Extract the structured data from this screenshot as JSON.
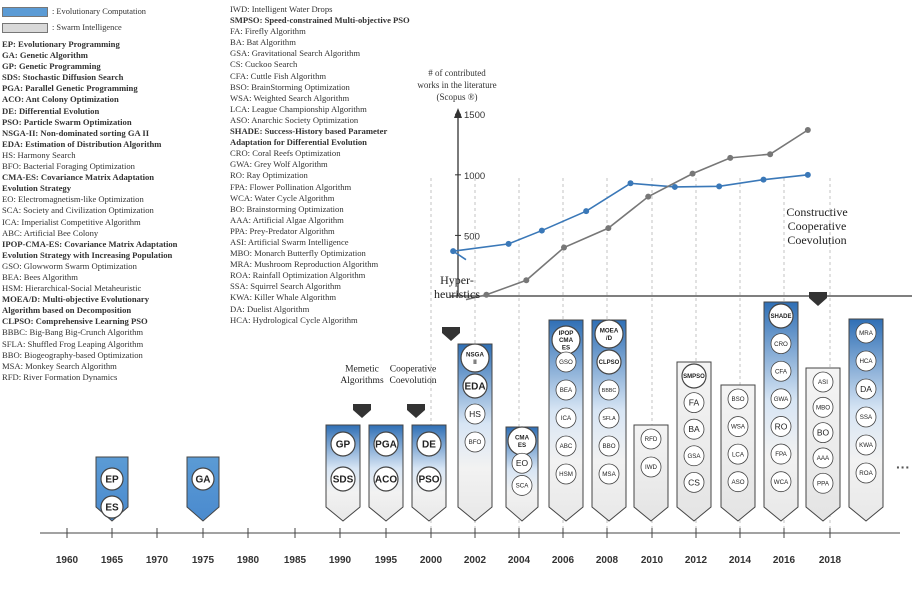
{
  "legend": {
    "ec_label": ": Evolutionary Computation",
    "si_label": ": Swarm Intelligence",
    "ec_color": "#5b9bd5",
    "si_color": "#d9d9d9",
    "abbrev_col1": [
      {
        "text": "EP: Evolutionary Programming",
        "bold": true
      },
      {
        "text": "GA: Genetic Algorithm",
        "bold": true
      },
      {
        "text": "GP: Genetic Programming",
        "bold": true
      },
      {
        "text": "SDS: Stochastic Diffusion Search",
        "bold": true
      },
      {
        "text": "PGA: Parallel Genetic Programming",
        "bold": true
      },
      {
        "text": "ACO: Ant Colony Optimization",
        "bold": true
      },
      {
        "text": "DE: Differential Evolution",
        "bold": true
      },
      {
        "text": "PSO: Particle Swarm Optimization",
        "bold": true
      },
      {
        "text": "NSGA-II: Non-dominated sorting GA II",
        "bold": true
      },
      {
        "text": "EDA: Estimation of Distribution Algorithm",
        "bold": true
      },
      {
        "text": "HS: Harmony Search",
        "bold": false
      },
      {
        "text": "BFO: Bacterial Foraging Optimization",
        "bold": false
      },
      {
        "text": "CMA-ES: Covariance Matrix Adaptation",
        "bold": true
      },
      {
        "text": "Evolution Strategy",
        "bold": true
      },
      {
        "text": "EO: Electromagnetism-like Optimization",
        "bold": false
      },
      {
        "text": "SCA: Society and Civilization Optimization",
        "bold": false
      },
      {
        "text": "ICA: Imperialist Competitive Algorithm",
        "bold": false
      },
      {
        "text": "ABC: Artificial Bee Colony",
        "bold": false
      },
      {
        "text": "IPOP-CMA-ES: Covariance Matrix Adaptation",
        "bold": true
      },
      {
        "text": "Evolution Strategy with Increasing Population",
        "bold": true
      },
      {
        "text": "GSO: Glowworm Swarm Optimization",
        "bold": false
      },
      {
        "text": "BEA: Bees Algorithm",
        "bold": false
      },
      {
        "text": "HSM: Hierarchical-Social Metaheuristic",
        "bold": false
      },
      {
        "text": "MOEA/D: Multi-objective Evolutionary",
        "bold": true
      },
      {
        "text": "Algorithm based on Decomposition",
        "bold": true
      },
      {
        "text": "CLPSO: Comprehensive Learning PSO",
        "bold": true
      },
      {
        "text": "BBBC: Big-Bang Big-Crunch Algorithm",
        "bold": false
      },
      {
        "text": "SFLA: Shuffled Frog Leaping Algorithm",
        "bold": false
      },
      {
        "text": "BBO: Biogeography-based Optimization",
        "bold": false
      },
      {
        "text": "MSA: Monkey Search Algorithm",
        "bold": false
      },
      {
        "text": "RFD: River Formation Dynamics",
        "bold": false
      }
    ],
    "abbrev_col2": [
      {
        "text": "IWD: Intelligent Water Drops",
        "bold": false
      },
      {
        "text": "SMPSO: Speed-constrained Multi-objective PSO",
        "bold": true
      },
      {
        "text": "FA: Firefly Algorithm",
        "bold": false
      },
      {
        "text": "BA: Bat Algorithm",
        "bold": false
      },
      {
        "text": "GSA: Gravitational Search Algorithm",
        "bold": false
      },
      {
        "text": "CS: Cuckoo Search",
        "bold": false
      },
      {
        "text": "CFA: Cuttle Fish Algorithm",
        "bold": false
      },
      {
        "text": "BSO: BrainStorming Optimization",
        "bold": false
      },
      {
        "text": "WSA: Weighted Search Algorithm",
        "bold": false
      },
      {
        "text": "LCA: League Championship Algorithm",
        "bold": false
      },
      {
        "text": "ASO: Anarchic Society Optimization",
        "bold": false
      },
      {
        "text": "SHADE: Success-History based Parameter",
        "bold": true
      },
      {
        "text": "Adaptation for Differential Evolution",
        "bold": true
      },
      {
        "text": "CRO: Coral Reefs Optimization",
        "bold": false
      },
      {
        "text": "GWA: Grey Wolf Algorithm",
        "bold": false
      },
      {
        "text": "RO: Ray Optimization",
        "bold": false
      },
      {
        "text": "FPA: Flower Pollination Algorithm",
        "bold": false
      },
      {
        "text": "WCA: Water Cycle Algorithm",
        "bold": false
      },
      {
        "text": "BO: Brainstorming Optimization",
        "bold": false
      },
      {
        "text": "AAA: Artificial Algae Algorithm",
        "bold": false
      },
      {
        "text": "PPA: Prey-Predator Algorithm",
        "bold": false
      },
      {
        "text": "ASI: Artificial Swarm Intelligence",
        "bold": false
      },
      {
        "text": "MBO: Monarch Butterfly Optimization",
        "bold": false
      },
      {
        "text": "MRA: Mushroom Reproduction Algorithm",
        "bold": false
      },
      {
        "text": "ROA: Rainfall Optimization Algorithm",
        "bold": false
      },
      {
        "text": "SSA: Squirrel Search Algorithm",
        "bold": false
      },
      {
        "text": "KWA: Killer Whale Algorithm",
        "bold": false
      },
      {
        "text": "DA: Duelist Algorithm",
        "bold": false
      },
      {
        "text": "HCA: Hydrological Cycle Algorithm",
        "bold": false
      }
    ]
  },
  "timeline": {
    "year_labels": [
      "1960",
      "1965",
      "1970",
      "1975",
      "1980",
      "1985",
      "1990",
      "1995",
      "2000",
      "2002",
      "2004",
      "2006",
      "2008",
      "2010",
      "2012",
      "2014",
      "2016",
      "2018"
    ],
    "ellipsis": "···"
  },
  "milestones": [
    {
      "label": "Memetic\nAlgorithms"
    },
    {
      "label": "Cooperative\nCoevolution"
    },
    {
      "label": "Hyper-\nheuristics"
    },
    {
      "label": "Constructive\nCooperative\nCoevolution"
    }
  ],
  "columns": [
    {
      "year": "1965",
      "kind": "ec",
      "bold": [
        "EP",
        "ES"
      ],
      "items": []
    },
    {
      "year": "1975",
      "kind": "ec",
      "bold": [
        "GA"
      ],
      "items": []
    },
    {
      "year": "1990",
      "kind": "ec",
      "bold": [
        "GP",
        "SDS"
      ],
      "items": []
    },
    {
      "year": "1993",
      "kind": "ec",
      "bold": [
        "PGA",
        "ACO"
      ],
      "items": []
    },
    {
      "year": "1995",
      "kind": "ec",
      "bold": [
        "DE",
        "PSO"
      ],
      "items": []
    },
    {
      "year": "2001",
      "kind": "ec",
      "bold": [
        "NSGA II",
        "EDA"
      ],
      "items": [
        "HS",
        "BFO"
      ]
    },
    {
      "year": "2003",
      "kind": "ec",
      "bold": [
        "CMA ES"
      ],
      "items": [
        "EO",
        "SCA"
      ]
    },
    {
      "year": "2005",
      "kind": "ec",
      "bold": [
        "IPOP CMA ES"
      ],
      "items": [
        "GSO",
        "BEA",
        "ICA",
        "ABC",
        "HSM"
      ]
    },
    {
      "year": "2006",
      "kind": "ec",
      "bold": [
        "MOEA /D",
        "CLPSO"
      ],
      "items": [
        "BBBC",
        "SFLA",
        "BBO",
        "MSA"
      ]
    },
    {
      "year": "2008",
      "kind": "si",
      "bold": [],
      "items": [
        "RFD",
        "IWD"
      ]
    },
    {
      "year": "2010",
      "kind": "si",
      "bold": [
        "SMPSO"
      ],
      "items": [
        "FA",
        "BA",
        "GSA",
        "CS"
      ]
    },
    {
      "year": "2012",
      "kind": "si",
      "bold": [],
      "items": [
        "BSO",
        "WSA",
        "LCA",
        "ASO"
      ]
    },
    {
      "year": "2014",
      "kind": "ec",
      "bold": [
        "SHADE"
      ],
      "items": [
        "CRO",
        "CFA",
        "GWA",
        "RO",
        "FPA",
        "WCA"
      ]
    },
    {
      "year": "2016",
      "kind": "si",
      "bold": [],
      "items": [
        "ASI",
        "MBO",
        "BO",
        "AAA",
        "PPA"
      ]
    },
    {
      "year": "2017",
      "kind": "ec",
      "bold": [],
      "items": [
        "MRA",
        "HCA",
        "DA",
        "SSA",
        "KWA",
        "ROA"
      ]
    }
  ],
  "chart_data": {
    "type": "line",
    "title": "# of contributed\nworks in the literature\n(Scopus ®)",
    "y_ticks": [
      "500",
      "1000",
      "1500"
    ],
    "ylim": [
      0,
      1700
    ],
    "series": [
      {
        "color": "#3a78b8",
        "x": [
          2001,
          2003.5,
          2005,
          2007,
          2009,
          2011,
          2013,
          2015,
          2017
        ],
        "values": [
          370,
          430,
          540,
          700,
          930,
          900,
          905,
          960,
          1000
        ]
      },
      {
        "color": "#777777",
        "x": [
          2002.5,
          2004.3,
          2006,
          2008,
          2009.8,
          2011.8,
          2013.5,
          2015.3,
          2017
        ],
        "values": [
          10,
          130,
          400,
          560,
          820,
          1010,
          1140,
          1170,
          1370
        ]
      }
    ]
  }
}
